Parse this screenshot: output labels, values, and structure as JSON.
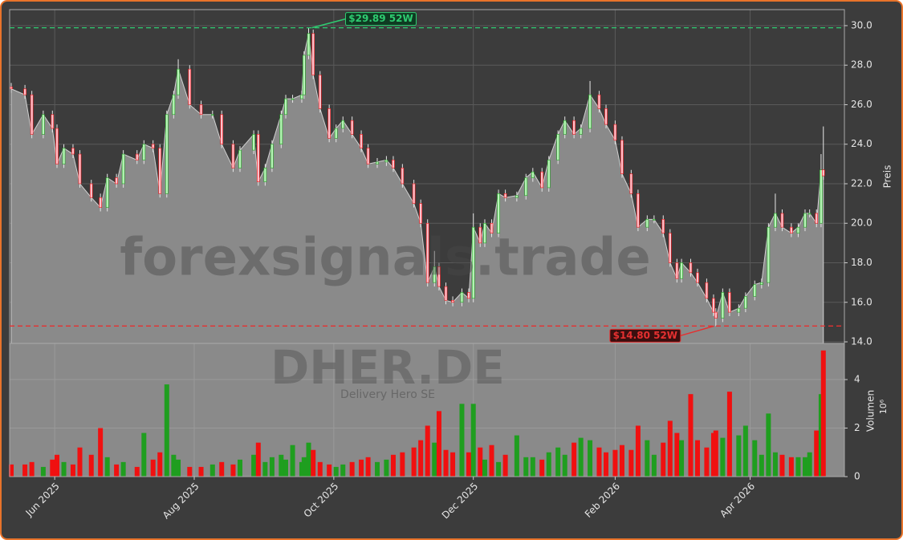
{
  "chart_data": {
    "type": "candlestick",
    "watermark": "forexsignals.trade",
    "symbol": "DHER.DE",
    "company": "Delivery Hero SE",
    "ylabel": "Preis",
    "volume_label": "Volumen",
    "volume_offset": "10⁶",
    "up_color": "#1f9e1f",
    "down_color": "#f01010",
    "area_color": "#8a8a8a",
    "grid": true,
    "xlim": [
      -0.7,
      364.2
    ],
    "xticks": [
      {
        "value": 19,
        "label": "Jun 2025"
      },
      {
        "value": 80,
        "label": "Aug 2025"
      },
      {
        "value": 141,
        "label": "Oct 2025"
      },
      {
        "value": 202,
        "label": "Dec 2025"
      },
      {
        "value": 264,
        "label": "Feb 2026"
      },
      {
        "value": 323,
        "label": "Apr 2026"
      }
    ],
    "ylim": [
      13.92,
      30.81
    ],
    "yticks": [
      {
        "value": 14,
        "label": "14.0"
      },
      {
        "value": 16,
        "label": "16.0"
      },
      {
        "value": 18,
        "label": "18.0"
      },
      {
        "value": 20,
        "label": "20.0"
      },
      {
        "value": 22,
        "label": "22.0"
      },
      {
        "value": 24,
        "label": "24.0"
      },
      {
        "value": 26,
        "label": "26.0"
      },
      {
        "value": 28,
        "label": "28.0"
      },
      {
        "value": 30,
        "label": "30.0"
      }
    ],
    "volume_ylim": [
      0,
      5.49
    ],
    "volume_yticks": [
      0,
      2,
      4
    ],
    "annotations": [
      {
        "label": "$29.89 52W",
        "value": 29.89,
        "color": "#2ecc71"
      },
      {
        "label": "$14.80 52W",
        "value": 14.8,
        "color": "#e53030"
      }
    ],
    "x": [
      0,
      6,
      9,
      14,
      18,
      20,
      23,
      27,
      30,
      35,
      39,
      42,
      46,
      49,
      55,
      58,
      62,
      65,
      68,
      71,
      73,
      78,
      83,
      88,
      92,
      97,
      100,
      106,
      108,
      111,
      114,
      118,
      120,
      123,
      127,
      128,
      130,
      132,
      135,
      139,
      142,
      145,
      149,
      153,
      156,
      160,
      164,
      167,
      171,
      176,
      179,
      182,
      185,
      187,
      190,
      193,
      197,
      200,
      202,
      205,
      207,
      210,
      213,
      216,
      221,
      225,
      228,
      232,
      235,
      239,
      242,
      246,
      249,
      253,
      257,
      260,
      264,
      267,
      271,
      274,
      278,
      281,
      285,
      288,
      291,
      293,
      297,
      300,
      304,
      307,
      308,
      311,
      314,
      318,
      321,
      325,
      328,
      331,
      334,
      337,
      341,
      344,
      347,
      349,
      352,
      354,
      355
    ],
    "open": [
      26.9,
      26.8,
      26.5,
      24.5,
      25.5,
      24.8,
      23.0,
      23.8,
      23.5,
      22.0,
      21.3,
      20.8,
      22.3,
      22.0,
      23.5,
      23.2,
      24.0,
      23.8,
      21.5,
      25.5,
      26.5,
      27.8,
      26.0,
      25.5,
      25.5,
      24.0,
      22.8,
      23.7,
      24.5,
      22.1,
      22.8,
      24.0,
      25.5,
      26.3,
      26.3,
      26.5,
      28.5,
      29.6,
      27.5,
      25.8,
      24.3,
      24.8,
      25.2,
      24.5,
      23.8,
      23.0,
      23.1,
      23.2,
      22.8,
      22.0,
      21.0,
      20.0,
      17.0,
      17.8,
      16.8,
      16.1,
      16.0,
      16.5,
      16.2,
      19.8,
      19.0,
      20.0,
      19.5,
      21.5,
      21.3,
      21.4,
      22.3,
      22.6,
      21.8,
      23.2,
      24.5,
      25.2,
      24.5,
      24.8,
      26.5,
      25.8,
      25.0,
      24.2,
      22.5,
      21.5,
      19.8,
      20.2,
      20.2,
      19.5,
      18.0,
      17.2,
      18.0,
      17.5,
      17.0,
      16.2,
      15.5,
      15.2,
      16.5,
      15.5,
      15.7,
      16.3,
      16.9,
      17.0,
      19.8,
      20.5,
      19.8,
      19.5,
      19.8,
      20.5,
      20.5,
      20.0,
      22.7
    ],
    "high": [
      27.1,
      27.0,
      26.7,
      25.7,
      25.7,
      25.0,
      24.0,
      24.0,
      23.7,
      22.2,
      21.5,
      22.5,
      22.5,
      23.7,
      23.7,
      24.2,
      24.2,
      24.0,
      25.7,
      26.7,
      28.3,
      28.0,
      26.2,
      25.7,
      25.7,
      24.2,
      23.9,
      24.7,
      24.7,
      23.0,
      24.2,
      25.7,
      26.5,
      26.5,
      26.7,
      28.7,
      29.89,
      29.8,
      27.7,
      26.0,
      25.0,
      25.4,
      25.4,
      24.7,
      24.0,
      23.3,
      23.4,
      23.4,
      23.0,
      22.2,
      21.2,
      20.2,
      18.6,
      18.0,
      17.0,
      16.3,
      16.7,
      16.7,
      20.5,
      20.0,
      20.2,
      20.2,
      21.7,
      21.7,
      21.6,
      22.5,
      22.8,
      22.8,
      23.4,
      24.7,
      25.4,
      25.4,
      25.0,
      27.2,
      26.7,
      26.0,
      25.2,
      24.4,
      22.7,
      21.7,
      20.4,
      20.4,
      20.4,
      19.7,
      18.2,
      18.2,
      18.2,
      17.7,
      17.2,
      16.4,
      15.7,
      16.7,
      16.7,
      15.9,
      16.5,
      17.1,
      17.2,
      20.0,
      21.5,
      20.7,
      20.0,
      20.0,
      20.7,
      20.7,
      20.7,
      23.5,
      24.9
    ],
    "low": [
      26.6,
      26.3,
      24.3,
      24.3,
      24.6,
      22.8,
      22.8,
      23.3,
      21.8,
      21.1,
      20.6,
      20.6,
      21.8,
      21.8,
      23.0,
      23.0,
      23.6,
      21.3,
      21.3,
      25.3,
      26.3,
      25.8,
      25.3,
      25.3,
      23.8,
      22.6,
      22.6,
      23.5,
      21.9,
      21.9,
      22.6,
      23.8,
      25.3,
      26.1,
      26.1,
      26.3,
      28.3,
      27.3,
      25.6,
      24.1,
      24.1,
      24.6,
      24.3,
      23.6,
      22.8,
      22.8,
      22.9,
      22.6,
      21.8,
      20.8,
      19.8,
      16.8,
      16.8,
      16.6,
      15.9,
      15.8,
      15.8,
      16.0,
      16.0,
      18.8,
      18.8,
      19.3,
      19.3,
      21.1,
      21.1,
      21.2,
      22.1,
      21.6,
      21.6,
      23.0,
      24.3,
      24.3,
      24.3,
      24.6,
      25.6,
      24.8,
      24.0,
      22.3,
      21.3,
      19.6,
      19.6,
      20.0,
      19.3,
      17.8,
      17.0,
      17.0,
      17.3,
      16.8,
      16.0,
      15.3,
      14.8,
      15.0,
      15.3,
      15.3,
      15.5,
      16.1,
      16.7,
      16.8,
      19.6,
      19.6,
      19.3,
      19.3,
      19.6,
      20.3,
      19.8,
      19.8,
      22.2
    ],
    "close": [
      26.8,
      26.5,
      24.5,
      25.5,
      24.8,
      23.0,
      23.8,
      23.5,
      22.0,
      21.3,
      20.8,
      22.3,
      22.0,
      23.5,
      23.2,
      24.0,
      23.8,
      21.5,
      25.5,
      26.5,
      27.8,
      26.0,
      25.5,
      25.5,
      24.0,
      22.8,
      23.7,
      24.5,
      22.1,
      22.8,
      24.0,
      25.5,
      26.3,
      26.3,
      26.5,
      28.5,
      29.6,
      27.5,
      25.8,
      24.3,
      24.8,
      25.2,
      24.5,
      23.8,
      23.0,
      23.1,
      23.2,
      22.8,
      22.0,
      21.0,
      20.0,
      17.0,
      17.8,
      16.8,
      16.1,
      16.0,
      16.5,
      16.2,
      19.8,
      19.0,
      20.0,
      19.5,
      21.5,
      21.3,
      21.4,
      22.3,
      22.6,
      21.8,
      23.2,
      24.5,
      25.2,
      24.5,
      24.8,
      26.5,
      25.8,
      25.0,
      24.2,
      22.5,
      21.5,
      19.8,
      20.2,
      20.2,
      19.5,
      18.0,
      17.2,
      18.0,
      17.5,
      17.0,
      16.2,
      15.5,
      15.2,
      16.5,
      15.5,
      15.7,
      16.3,
      16.9,
      17.0,
      19.8,
      20.5,
      19.8,
      19.5,
      19.8,
      20.5,
      20.5,
      20.0,
      22.7,
      22.4
    ],
    "volume": [
      0.5,
      0.5,
      0.6,
      0.4,
      0.7,
      0.9,
      0.6,
      0.5,
      1.2,
      0.9,
      2.0,
      0.8,
      0.5,
      0.6,
      0.4,
      1.8,
      0.7,
      1.0,
      3.8,
      0.9,
      0.7,
      0.4,
      0.4,
      0.5,
      0.6,
      0.5,
      0.7,
      0.9,
      1.4,
      0.6,
      0.8,
      0.9,
      0.7,
      1.3,
      0.6,
      0.8,
      1.4,
      1.1,
      0.6,
      0.5,
      0.4,
      0.5,
      0.6,
      0.7,
      0.8,
      0.6,
      0.7,
      0.9,
      1.0,
      1.2,
      1.5,
      2.1,
      1.4,
      2.7,
      1.1,
      1.0,
      3.0,
      1.0,
      3.0,
      1.2,
      0.7,
      1.3,
      0.6,
      0.9,
      1.7,
      0.8,
      0.8,
      0.7,
      1.0,
      1.2,
      0.9,
      1.4,
      1.6,
      1.5,
      1.2,
      1.0,
      1.1,
      1.3,
      1.1,
      2.1,
      1.5,
      0.9,
      1.4,
      2.3,
      1.8,
      1.5,
      3.4,
      1.5,
      1.2,
      1.8,
      1.9,
      1.6,
      3.5,
      1.7,
      2.1,
      1.5,
      0.9,
      2.6,
      1.0,
      0.9,
      0.8,
      0.8,
      0.8,
      1.0,
      1.9,
      3.4,
      5.2
    ]
  }
}
